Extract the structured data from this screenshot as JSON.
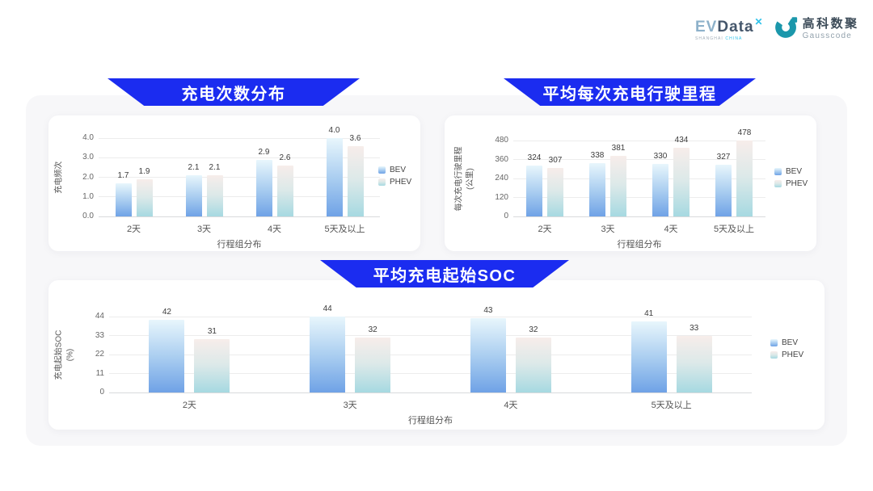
{
  "logo": {
    "evdata": {
      "ev": "EV",
      "data": "Data",
      "mark": "✕",
      "sub_left": "SHANGHAI",
      "sub_right": "CHINA"
    },
    "gausscode": {
      "cn": "高科数聚",
      "en": "Gausscode"
    }
  },
  "colors": {
    "banner_blue": "#1b2cf0",
    "panel_bg": "#f7f7f9",
    "bev_top": "#e8f6fc",
    "bev_mid": "#a9cdf0",
    "bev_bottom": "#6fa2e6",
    "phev_top": "#f7edea",
    "phev_mid": "#dce9e9",
    "phev_bottom": "#a6d9e1",
    "gauss_teal": "#1b97ab"
  },
  "chart_data": [
    {
      "type": "bar",
      "title": "充电次数分布",
      "ylabel_lines": [
        "充电频次"
      ],
      "xlabel": "行程组分布",
      "categories": [
        "2天",
        "3天",
        "4天",
        "5天及以上"
      ],
      "yticks": [
        "0.0",
        "1.0",
        "2.0",
        "3.0",
        "4.0"
      ],
      "ylim": [
        0,
        4.0
      ],
      "grid": true,
      "legend_position": "right",
      "series": [
        {
          "name": "BEV",
          "values": [
            1.7,
            2.1,
            2.9,
            4.0
          ],
          "labels": [
            "1.7",
            "2.1",
            "2.9",
            "4.0"
          ]
        },
        {
          "name": "PHEV",
          "values": [
            1.9,
            2.1,
            2.6,
            3.6
          ],
          "labels": [
            "1.9",
            "2.1",
            "2.6",
            "3.6"
          ]
        }
      ]
    },
    {
      "type": "bar",
      "title": "平均每次充电行驶里程",
      "ylabel_lines": [
        "每次充电行驶里程",
        "(公里)"
      ],
      "xlabel": "行程组分布",
      "categories": [
        "2天",
        "3天",
        "4天",
        "5天及以上"
      ],
      "yticks": [
        "0",
        "120",
        "240",
        "360",
        "480"
      ],
      "ylim": [
        0,
        480
      ],
      "grid": true,
      "legend_position": "right",
      "series": [
        {
          "name": "BEV",
          "values": [
            324,
            338,
            330,
            327
          ],
          "labels": [
            "324",
            "338",
            "330",
            "327"
          ]
        },
        {
          "name": "PHEV",
          "values": [
            307,
            381,
            434,
            478
          ],
          "labels": [
            "307",
            "381",
            "434",
            "478"
          ]
        }
      ]
    },
    {
      "type": "bar",
      "title": "平均充电起始SOC",
      "ylabel_lines": [
        "充电起始SOC",
        "(%)"
      ],
      "xlabel": "行程组分布",
      "categories": [
        "2天",
        "3天",
        "4天",
        "5天及以上"
      ],
      "yticks": [
        "0",
        "11",
        "22",
        "33",
        "44"
      ],
      "ylim": [
        0,
        44
      ],
      "grid": true,
      "legend_position": "right",
      "series": [
        {
          "name": "BEV",
          "values": [
            42,
            44,
            43,
            41
          ],
          "labels": [
            "42",
            "44",
            "43",
            "41"
          ]
        },
        {
          "name": "PHEV",
          "values": [
            31,
            32,
            32,
            33
          ],
          "labels": [
            "31",
            "32",
            "32",
            "33"
          ]
        }
      ]
    }
  ]
}
